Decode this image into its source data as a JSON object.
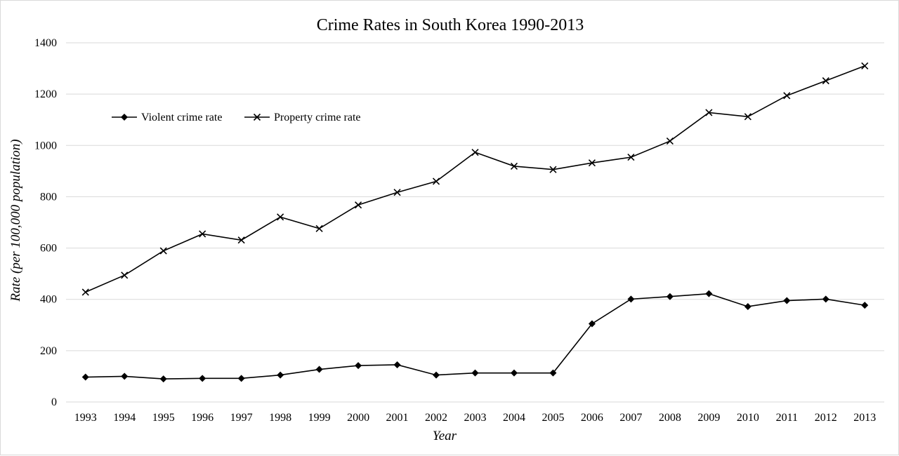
{
  "chart_data": {
    "type": "line",
    "title": "Crime Rates in South Korea 1990-2013",
    "xlabel": "Year",
    "ylabel": "Rate (per 100,000 population)",
    "x": [
      "1993",
      "1994",
      "1995",
      "1996",
      "1997",
      "1998",
      "1999",
      "2000",
      "2001",
      "2002",
      "2003",
      "2004",
      "2005",
      "2006",
      "2007",
      "2008",
      "2009",
      "2010",
      "2011",
      "2012",
      "2013"
    ],
    "ylim": [
      0,
      1400
    ],
    "yticks": [
      0,
      200,
      400,
      600,
      800,
      1000,
      1200,
      1400
    ],
    "grid": true,
    "legend_position": "top-left",
    "series": [
      {
        "name": "Violent crime rate",
        "marker": "diamond",
        "color": "#000000",
        "values": [
          97,
          100,
          90,
          92,
          92,
          105,
          127,
          142,
          145,
          105,
          113,
          113,
          113,
          305,
          401,
          411,
          422,
          372,
          395,
          401,
          377
        ]
      },
      {
        "name": "Property crime rate",
        "marker": "x",
        "color": "#000000",
        "values": [
          428,
          494,
          589,
          655,
          631,
          721,
          676,
          768,
          817,
          860,
          973,
          919,
          906,
          932,
          954,
          1017,
          1128,
          1112,
          1194,
          1252,
          1310
        ]
      }
    ]
  }
}
